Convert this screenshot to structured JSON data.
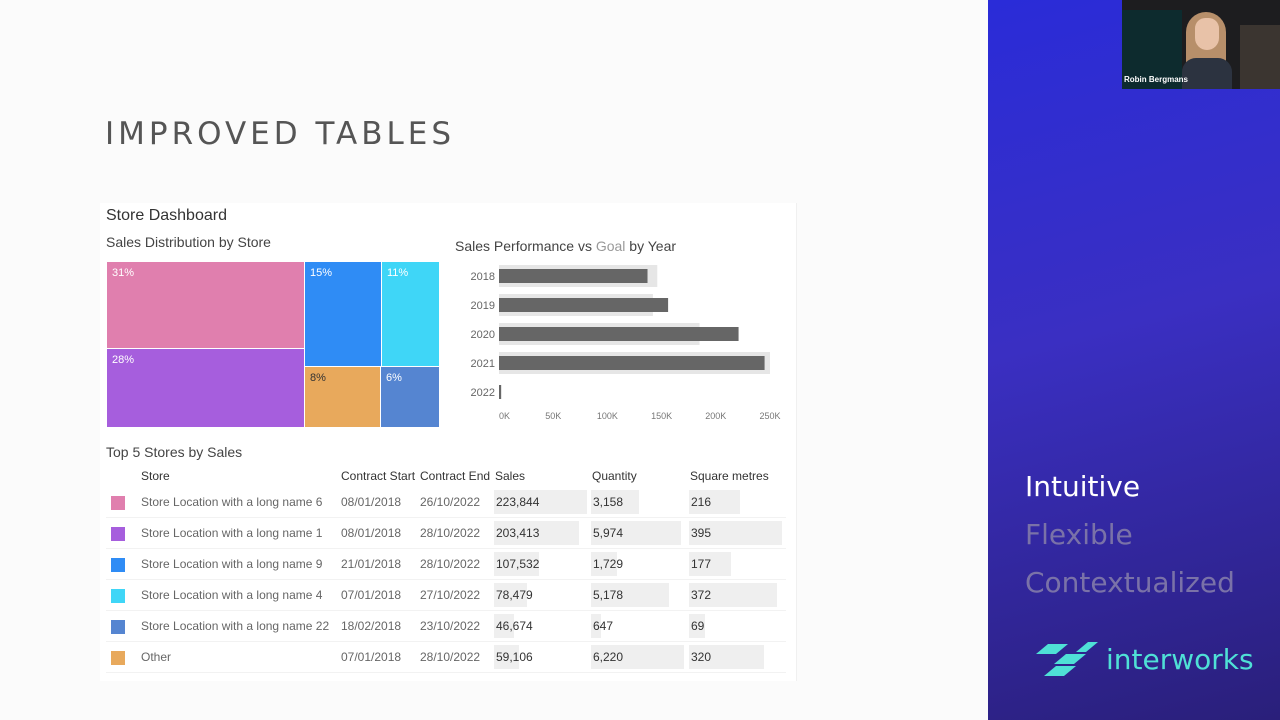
{
  "slide": {
    "title": "IMPROVED TABLES"
  },
  "dashboard": {
    "title": "Store Dashboard",
    "treemap": {
      "title": "Sales Distribution by Store",
      "tiles": [
        {
          "label": "31%",
          "color": "#E07FAE"
        },
        {
          "label": "28%",
          "color": "#A65EDD"
        },
        {
          "label": "15%",
          "color": "#2F8CF5"
        },
        {
          "label": "11%",
          "color": "#3FD6F7"
        },
        {
          "label": "8%",
          "color": "#E8A95C"
        },
        {
          "label": "6%",
          "color": "#5585D1"
        }
      ]
    },
    "bar_chart": {
      "title_part1": "Sales Performance vs ",
      "title_goal": "Goal",
      "title_part2": " by Year"
    },
    "table": {
      "title": "Top 5 Stores by Sales",
      "headers": {
        "store": "Store",
        "contract_start": "Contract Start",
        "contract_end": "Contract End",
        "sales": "Sales",
        "quantity": "Quantity",
        "square_metres": "Square metres"
      },
      "rows": [
        {
          "color": "#E07FAE",
          "store": "Store Location with a long name 6",
          "start": "08/01/2018",
          "end": "26/10/2022",
          "sales": "223,844",
          "quantity": "3,158",
          "sqm": "216"
        },
        {
          "color": "#A65EDD",
          "store": "Store Location with a long name 1",
          "start": "08/01/2018",
          "end": "28/10/2022",
          "sales": "203,413",
          "quantity": "5,974",
          "sqm": "395"
        },
        {
          "color": "#2F8CF5",
          "store": "Store Location with a long name 9",
          "start": "21/01/2018",
          "end": "28/10/2022",
          "sales": "107,532",
          "quantity": "1,729",
          "sqm": "177"
        },
        {
          "color": "#3FD6F7",
          "store": "Store Location with a long name 4",
          "start": "07/01/2018",
          "end": "27/10/2022",
          "sales": "78,479",
          "quantity": "5,178",
          "sqm": "372"
        },
        {
          "color": "#5585D1",
          "store": "Store Location with a long name 22",
          "start": "18/02/2018",
          "end": "23/10/2022",
          "sales": "46,674",
          "quantity": "647",
          "sqm": "69"
        },
        {
          "color": "#E8A95C",
          "store": "Other",
          "start": "07/01/2018",
          "end": "28/10/2022",
          "sales": "59,106",
          "quantity": "6,220",
          "sqm": "320"
        }
      ]
    }
  },
  "chart_data": {
    "type": "bar",
    "orientation": "horizontal",
    "categories": [
      "2018",
      "2019",
      "2020",
      "2021",
      "2022"
    ],
    "series": [
      {
        "values": [
          137000,
          156000,
          221000,
          245000,
          2000
        ],
        "color": "#666666"
      },
      {
        "name": "Goal",
        "values": [
          146000,
          142000,
          185000,
          250000,
          0
        ],
        "color": "#e6e6e6"
      }
    ],
    "xticks": [
      "0K",
      "50K",
      "100K",
      "150K",
      "200K",
      "250K"
    ],
    "xlim": [
      0,
      250000
    ],
    "grid": false
  },
  "sidebar": {
    "participant_name": "Robin Bergmans",
    "words": [
      {
        "text": "Intuitive",
        "color": "#ffffff"
      },
      {
        "text": "Flexible",
        "color": "#7a72a8"
      },
      {
        "text": "Contextualized",
        "color": "#7a72a8"
      }
    ],
    "brand": "interworks",
    "brand_color": "#4fe0d6"
  }
}
